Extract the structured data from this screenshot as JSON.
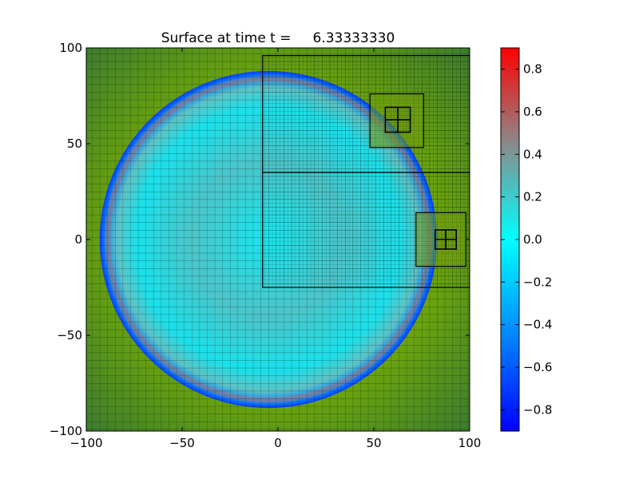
{
  "chart_data": {
    "type": "heatmap",
    "title": "Surface at time t =     6.33333330",
    "xlim": [
      -100,
      100
    ],
    "ylim": [
      -100,
      100
    ],
    "x_ticks": [
      -100,
      -50,
      0,
      50,
      100
    ],
    "y_ticks": [
      -100,
      -50,
      0,
      50,
      100
    ],
    "x_tick_labels": [
      "−100",
      "−50",
      "0",
      "50",
      "100"
    ],
    "y_tick_labels": [
      "−100",
      "−50",
      "0",
      "50",
      "100"
    ],
    "xlabel": "",
    "ylabel": "",
    "colorbar": {
      "range": [
        -0.9,
        0.9
      ],
      "ticks": [
        -0.8,
        -0.6,
        -0.4,
        -0.2,
        0.0,
        0.2,
        0.4,
        0.6,
        0.8
      ],
      "tick_labels": [
        "−0.8",
        "−0.6",
        "−0.4",
        "−0.2",
        "0.0",
        "0.2",
        "0.4",
        "0.6",
        "0.8"
      ],
      "colormap_stops": [
        {
          "value": -0.9,
          "color": "#0000ff"
        },
        {
          "value": -0.45,
          "color": "#0088ff"
        },
        {
          "value": 0.0,
          "color": "#00ffff"
        },
        {
          "value": 0.45,
          "color": "#8a8a8a"
        },
        {
          "value": 0.9,
          "color": "#ff0000"
        }
      ]
    },
    "land_color_inner": "#6fa80a",
    "land_color_edge": "#3a7a30",
    "water_region": {
      "shape": "circle",
      "center": [
        -5,
        0
      ],
      "radius": 88,
      "surface_mean": 0.05
    },
    "refinement_patches": [
      {
        "level": 2,
        "x": [
          -8,
          100
        ],
        "y": [
          35,
          96
        ]
      },
      {
        "level": 2,
        "x": [
          -8,
          100
        ],
        "y": [
          -25,
          35
        ]
      },
      {
        "level": 3,
        "x": [
          48,
          76
        ],
        "y": [
          48,
          76
        ]
      },
      {
        "level": 3,
        "x": [
          72,
          98
        ],
        "y": [
          -14,
          14
        ]
      },
      {
        "level": 4,
        "x": [
          56,
          69
        ],
        "y": [
          56,
          69
        ]
      },
      {
        "level": 4,
        "x": [
          82,
          93
        ],
        "y": [
          -5,
          5
        ]
      }
    ],
    "wave_front": {
      "center": [
        -5,
        0
      ],
      "radius": 88,
      "peak_surface": 0.5,
      "trough_surface": -0.8
    }
  }
}
